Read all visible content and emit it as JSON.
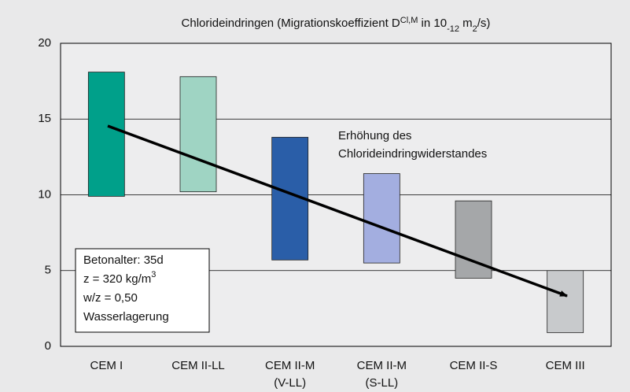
{
  "chart_data": {
    "type": "floating-bar",
    "title": [
      "Chlorideindringen (Migrationskoeffizient D",
      "Cl,M",
      " in 10",
      "-12",
      " m",
      "2",
      "/s)"
    ],
    "categories": [
      [
        "CEM I"
      ],
      [
        "CEM II-LL"
      ],
      [
        "CEM II-M",
        "(V-LL)"
      ],
      [
        "CEM II-M",
        "(S-LL)"
      ],
      [
        "CEM II-S"
      ],
      [
        "CEM III"
      ]
    ],
    "ranges": [
      [
        9.9,
        18.1
      ],
      [
        10.2,
        17.8
      ],
      [
        5.7,
        13.8
      ],
      [
        5.5,
        11.4
      ],
      [
        4.5,
        9.6
      ],
      [
        0.9,
        5.0
      ]
    ],
    "colors": [
      "#00a08a",
      "#9fd4c3",
      "#2a5ea8",
      "#a3aee0",
      "#a5a7a9",
      "#c8cacc"
    ],
    "ylim": [
      0,
      20
    ],
    "yticks": [
      0,
      5,
      10,
      15,
      20
    ],
    "grid": true,
    "annotation": [
      "Erhöhung des",
      "Chlorideindringwiderstandes"
    ],
    "info_box": [
      [
        "Betonalter: 35d"
      ],
      [
        "z = 320 kg/m",
        "3"
      ],
      [
        "w/z = 0,50"
      ],
      [
        "Wasserlagerung"
      ]
    ]
  }
}
